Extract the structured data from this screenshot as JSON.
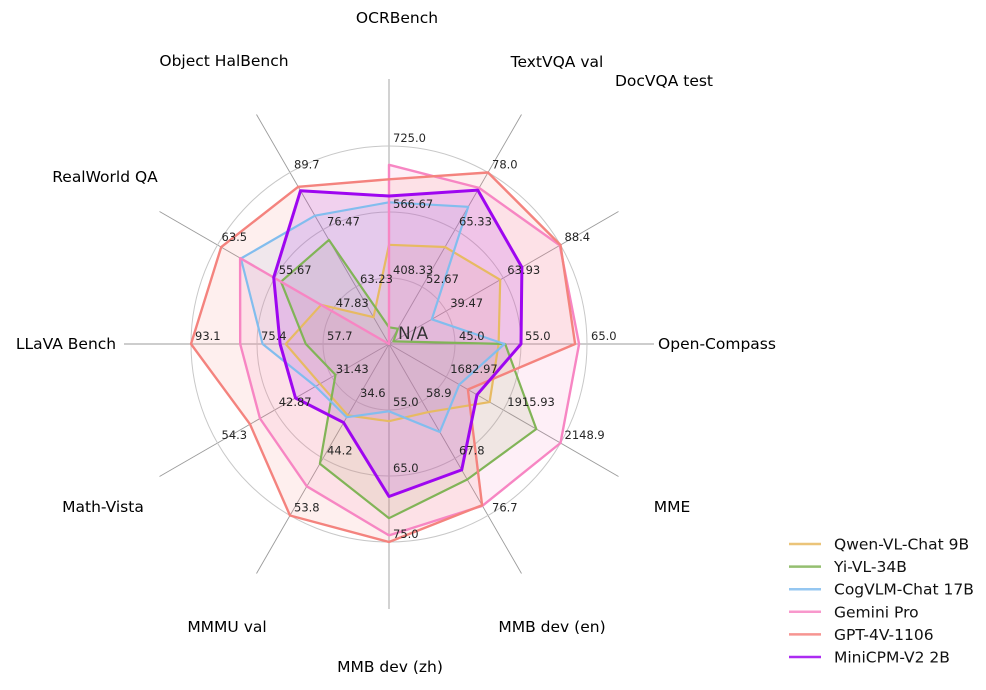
{
  "chart_data": {
    "type": "radar",
    "na_label": "N/A",
    "grid": {
      "rings": 3,
      "ring_color": "#c8c8c8",
      "spoke_color": "#9b9b9b",
      "background": "#ffffff"
    },
    "axes": [
      {
        "label": "OCRBench",
        "min": 250,
        "max": 725,
        "ticks": [
          408.33,
          566.67,
          725.0
        ],
        "tick_labels": [
          "408.33",
          "566.67",
          "725.0"
        ]
      },
      {
        "label": "TextVQA val",
        "min": 40,
        "max": 78.0,
        "ticks": [
          52.67,
          65.33,
          78.0
        ],
        "tick_labels": [
          "52.67",
          "65.33",
          "78.0"
        ]
      },
      {
        "label": "DocVQA test",
        "min": 15,
        "max": 88.4,
        "ticks": [
          39.47,
          63.93,
          88.4
        ],
        "tick_labels": [
          "39.47",
          "63.93",
          "88.4"
        ]
      },
      {
        "label": "Open-Compass",
        "min": 35,
        "max": 65.0,
        "ticks": [
          45.0,
          55.0,
          65.0
        ],
        "tick_labels": [
          "45.0",
          "55.0",
          "65.0"
        ]
      },
      {
        "label": "MME",
        "min": 1450,
        "max": 2148.9,
        "ticks": [
          1682.97,
          1915.93,
          2148.9
        ],
        "tick_labels": [
          "1682.97",
          "1915.93",
          "2148.9"
        ]
      },
      {
        "label": "MMB dev (en)",
        "min": 50,
        "max": 76.7,
        "ticks": [
          58.9,
          67.8,
          76.7
        ],
        "tick_labels": [
          "58.9",
          "67.8",
          "76.7"
        ]
      },
      {
        "label": "MMB dev (zh)",
        "min": 45,
        "max": 75.0,
        "ticks": [
          55.0,
          65.0,
          75.0
        ],
        "tick_labels": [
          "55.0",
          "65.0",
          "75.0"
        ]
      },
      {
        "label": "MMMU val",
        "min": 25,
        "max": 53.8,
        "ticks": [
          34.6,
          44.2,
          53.8
        ],
        "tick_labels": [
          "34.6",
          "44.2",
          "53.8"
        ]
      },
      {
        "label": "Math-Vista",
        "min": 20,
        "max": 54.3,
        "ticks": [
          31.43,
          42.87,
          54.3
        ],
        "tick_labels": [
          "31.43",
          "42.87",
          "54.3"
        ]
      },
      {
        "label": "LLaVA Bench",
        "min": 40,
        "max": 93.1,
        "ticks": [
          57.7,
          75.4,
          93.1
        ],
        "tick_labels": [
          "57.7",
          "75.4",
          "93.1"
        ]
      },
      {
        "label": "RealWorld QA",
        "min": 40,
        "max": 63.5,
        "ticks": [
          47.83,
          55.67,
          63.5
        ],
        "tick_labels": [
          "47.83",
          "55.67",
          "63.5"
        ]
      },
      {
        "label": "Object HalBench",
        "min": 50,
        "max": 89.7,
        "ticks": [
          63.23,
          76.47,
          89.7
        ],
        "tick_labels": [
          "63.23",
          "76.47",
          "89.7"
        ]
      }
    ],
    "series": [
      {
        "name": "Qwen-VL-Chat 9B",
        "color": "#e7ba62",
        "line_width": 2.2,
        "values": [
          488,
          61.5,
          62.6,
          51.6,
          1860.0,
          60.6,
          56.7,
          37.0,
          33.8,
          67.7,
          49.3,
          56.2
        ]
      },
      {
        "name": "Yi-VL-34B",
        "color": "#81b457",
        "line_width": 2.2,
        "values": [
          290,
          43.4,
          16.9,
          52.6,
          2050.2,
          71.1,
          71.4,
          45.1,
          30.7,
          62.3,
          54.8,
          74.1
        ]
      },
      {
        "name": "CogVLM-Chat 17B",
        "color": "#82bdee",
        "line_width": 2.2,
        "values": [
          590,
          70.4,
          33.3,
          52.5,
          1736.6,
          63.7,
          55.2,
          37.3,
          34.7,
          73.9,
          60.3,
          79.7
        ]
      },
      {
        "name": "Gemini Pro",
        "color": "#f786c3",
        "line_width": 2.4,
        "values": [
          680,
          74.6,
          88.1,
          63.8,
          2148.9,
          75.2,
          74.0,
          48.9,
          45.8,
          79.9,
          60.4,
          null
        ]
      },
      {
        "name": "GPT-4V-1106",
        "color": "#f4837e",
        "line_width": 2.4,
        "values": [
          645,
          78.0,
          88.4,
          63.2,
          1771.5,
          75.1,
          75.0,
          53.8,
          47.8,
          93.1,
          63.0,
          86.4
        ]
      },
      {
        "name": "MiniCPM-V2 2B",
        "color": "#9e06f0",
        "line_width": 3.0,
        "values": [
          605,
          74.1,
          71.9,
          55.0,
          1808.6,
          69.6,
          68.1,
          38.2,
          38.7,
          69.2,
          55.8,
          85.5
        ]
      }
    ]
  }
}
